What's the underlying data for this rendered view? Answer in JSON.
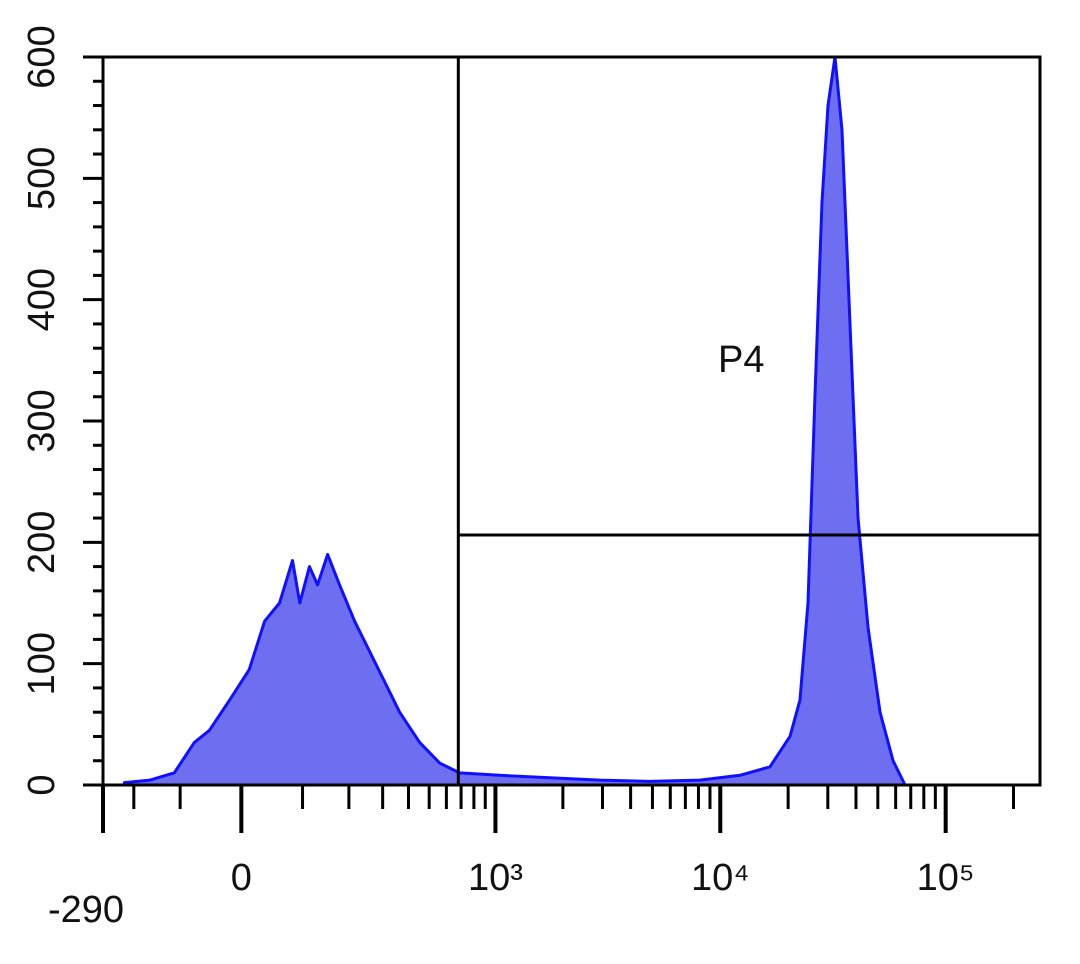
{
  "chart_data": {
    "type": "area",
    "x": [
      -225,
      -162,
      -111,
      -75,
      -50,
      -18,
      12,
      36,
      60,
      82,
      95,
      113,
      129,
      150,
      177,
      215,
      258,
      307,
      363,
      452,
      560,
      689,
      1044,
      1749,
      2919,
      4862,
      8115,
      12230,
      16610,
      20380,
      22570,
      24500,
      26300,
      28260,
      30050,
      32280,
      34670,
      37630,
      40850,
      45230,
      51150,
      58430,
      66030
    ],
    "values": [
      2,
      4,
      10,
      35,
      45,
      70,
      95,
      135,
      150,
      185,
      150,
      180,
      165,
      190,
      165,
      135,
      110,
      85,
      60,
      35,
      18,
      10,
      8,
      6,
      4,
      3,
      4,
      8,
      15,
      40,
      70,
      150,
      320,
      480,
      560,
      600,
      540,
      380,
      220,
      130,
      60,
      20,
      0
    ],
    "color": "#1010ff",
    "fill": "#6e6ef0",
    "xscale": "biexponential",
    "xlim": [
      -290,
      262144
    ],
    "xticks": [
      -290,
      0,
      {
        "value": 1000,
        "label": "10³"
      },
      {
        "value": 10000,
        "label": "10⁴"
      },
      {
        "value": 100000,
        "label": "10⁵"
      }
    ],
    "xminorticks": [
      -200,
      -100,
      100,
      200,
      300,
      400,
      500,
      600,
      700,
      800,
      900,
      2000,
      3000,
      4000,
      5000,
      6000,
      7000,
      8000,
      9000,
      20000,
      30000,
      40000,
      50000,
      60000,
      70000,
      80000,
      90000,
      200000
    ],
    "ylim": [
      0,
      600
    ],
    "yticks": [
      0,
      100,
      200,
      300,
      400,
      500,
      600
    ],
    "yminorticks": [
      20,
      40,
      60,
      80,
      120,
      140,
      160,
      180,
      220,
      240,
      260,
      280,
      320,
      340,
      360,
      380,
      420,
      440,
      460,
      480,
      520,
      540,
      560,
      580
    ],
    "gate": {
      "label": "P4",
      "x": 680,
      "y": 206
    }
  }
}
